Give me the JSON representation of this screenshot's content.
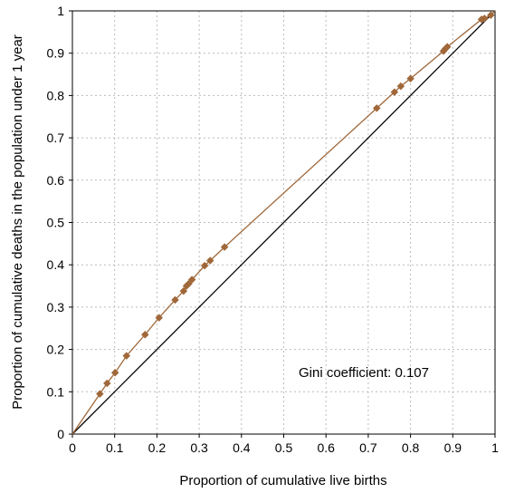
{
  "chart_data": {
    "type": "line",
    "title": "",
    "xlabel": "Proportion of cumulative live births",
    "ylabel": "Proportion of cumulative deaths in the population under 1 year",
    "xlim": [
      0,
      1
    ],
    "ylim": [
      0,
      1
    ],
    "x_ticks": [
      "0",
      "0.1",
      "0.2",
      "0.3",
      "0.4",
      "0.5",
      "0.6",
      "0.7",
      "0.8",
      "0.9",
      "1"
    ],
    "y_ticks": [
      "0",
      "0.1",
      "0.2",
      "0.3",
      "0.4",
      "0.5",
      "0.6",
      "0.7",
      "0.8",
      "0.9",
      "1"
    ],
    "grid": true,
    "annotation": "Gini coefficient: 0.107",
    "colors": {
      "curve": "#a0683a",
      "marker": "#a0683a",
      "equality_line": "#000000",
      "grid": "#bbbbbb"
    },
    "series": [
      {
        "type": "line-with-markers",
        "x": [
          0,
          0.065,
          0.082,
          0.101,
          0.128,
          0.172,
          0.205,
          0.243,
          0.263,
          0.27,
          0.275,
          0.283,
          0.313,
          0.326,
          0.36,
          0.72,
          0.762,
          0.777,
          0.8,
          0.878,
          0.882,
          0.887,
          0.968,
          0.975,
          0.99,
          1
        ],
        "y": [
          0,
          0.095,
          0.12,
          0.145,
          0.185,
          0.235,
          0.275,
          0.317,
          0.338,
          0.35,
          0.355,
          0.365,
          0.398,
          0.41,
          0.442,
          0.77,
          0.808,
          0.822,
          0.84,
          0.905,
          0.91,
          0.915,
          0.98,
          0.982,
          0.99,
          1
        ]
      },
      {
        "type": "equality-line",
        "x": [
          0,
          1
        ],
        "y": [
          0,
          1
        ]
      }
    ]
  }
}
